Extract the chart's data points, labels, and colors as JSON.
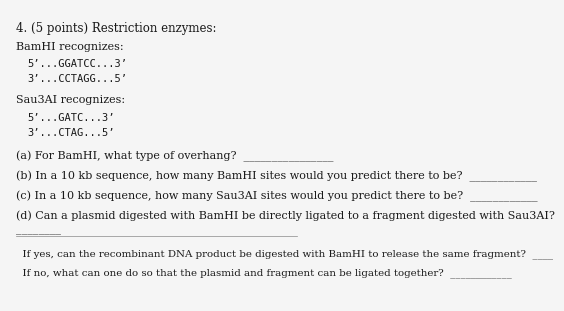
{
  "bg_color": "#f5f5f5",
  "text_color": "#1a1a1a",
  "title": "4. (5 points) Restriction enzymes:",
  "bamhi_label": "BamHI recognizes:",
  "bamhi_line1": "5’...GGATCC...3’",
  "bamhi_line2": "3’...CCTAGG...5’",
  "sau3ai_label": "Sau3AI recognizes:",
  "sau3ai_line1": "5’...GATC...3’",
  "sau3ai_line2": "3’...CTAG...5’",
  "qa": "(a) For BamHI, what type of overhang?  ________________",
  "qb": "(b) In a 10 kb sequence, how many BamHI sites would you predict there to be?  ____________",
  "qc": "(c) In a 10 kb sequence, how many Sau3AI sites would you predict there to be?  ____________",
  "qd": "(d) Can a plasmid digested with BamHI be directly ligated to a fragment digested with Sau3AI?",
  "qd_line": "________",
  "indent_yes": "  If yes, can the recombinant DNA product be digested with BamHI to release the same fragment?  ____",
  "indent_no": "  If no, what can one do so that the plasmid and fragment can be ligated together?  ____________",
  "font_size_title": 8.5,
  "font_size_body": 8.0,
  "font_size_mono": 7.5,
  "font_size_small": 7.5
}
